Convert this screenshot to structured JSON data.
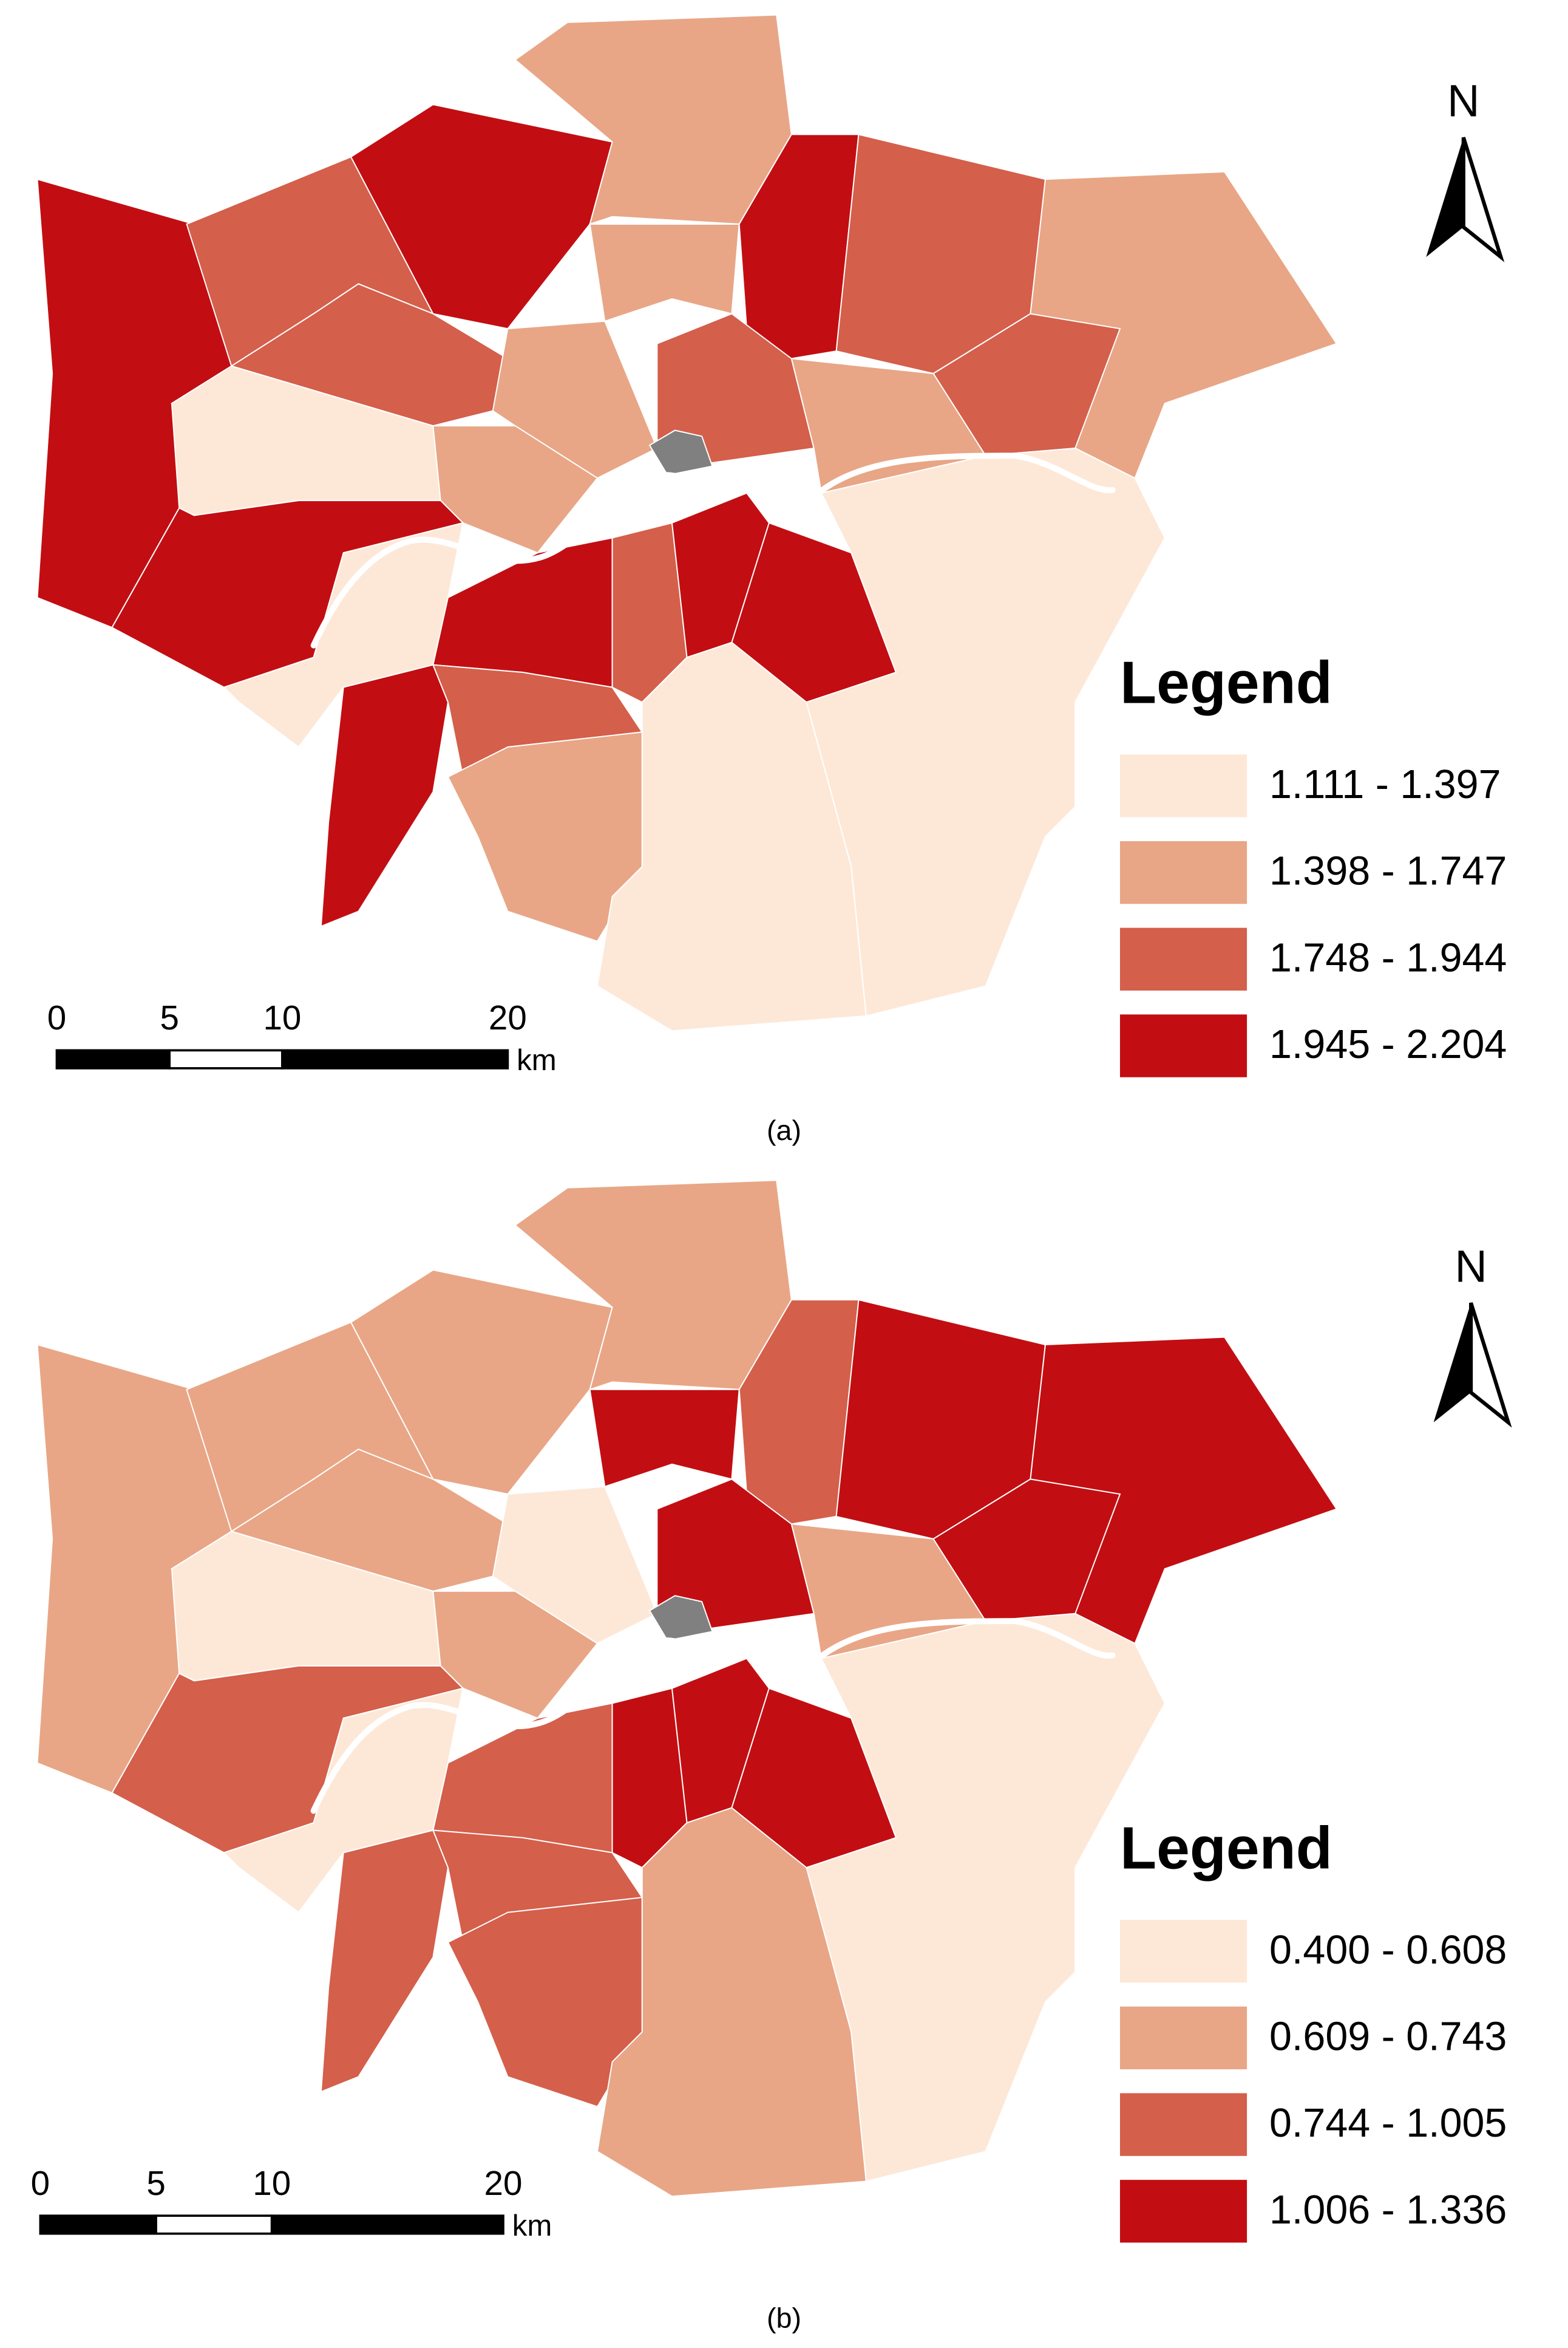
{
  "panels": [
    {
      "caption": "(a)",
      "north": "N",
      "legend": {
        "title": "Legend",
        "items": [
          {
            "label": "1.111 - 1.397",
            "color": "#fde8d8"
          },
          {
            "label": "1.398 - 1.747",
            "color": "#e8a686"
          },
          {
            "label": "1.748 - 1.944",
            "color": "#d45f4b"
          },
          {
            "label": "1.945 - 2.204",
            "color": "#c20e12"
          }
        ]
      },
      "scale_bar": {
        "ticks": [
          0,
          5,
          10,
          20
        ],
        "unit": "km"
      }
    },
    {
      "caption": "(b)",
      "north": "N",
      "legend": {
        "title": "Legend",
        "items": [
          {
            "label": "0.400 - 0.608",
            "color": "#fde8d8"
          },
          {
            "label": "0.609 - 0.743",
            "color": "#e8a686"
          },
          {
            "label": "0.744 - 1.005",
            "color": "#d45f4b"
          },
          {
            "label": "1.006 - 1.336",
            "color": "#c20e12"
          }
        ]
      },
      "scale_bar": {
        "ticks": [
          0,
          5,
          10,
          20
        ],
        "unit": "km"
      }
    }
  ]
}
